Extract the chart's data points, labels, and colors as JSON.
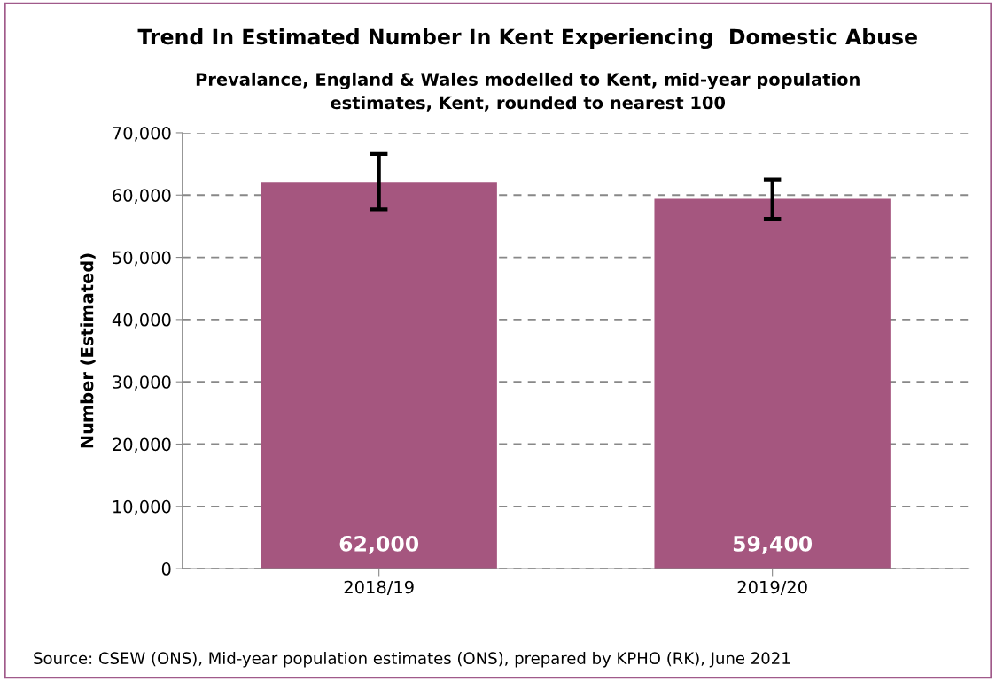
{
  "chart_data": {
    "type": "bar",
    "title": "Trend In Estimated Number In Kent Experiencing  Domestic Abuse",
    "subtitle": "Prevalance, England & Wales modelled to Kent, mid-year population\nestimates, Kent, rounded to nearest 100",
    "ylabel": "Number (Estimated)",
    "categories": [
      "2018/19",
      "2019/20"
    ],
    "values": [
      62000,
      59400
    ],
    "value_labels": [
      "62,000",
      "59,400"
    ],
    "errors": [
      [
        57700,
        66600
      ],
      [
        56200,
        62500
      ]
    ],
    "color": "#a5567f",
    "ylim": [
      0,
      70000
    ],
    "yticks": [
      {
        "value": 0,
        "label": "0"
      },
      {
        "value": 10000,
        "label": "10,000"
      },
      {
        "value": 20000,
        "label": "20,000"
      },
      {
        "value": 30000,
        "label": "30,000"
      },
      {
        "value": 40000,
        "label": "40,000"
      },
      {
        "value": 50000,
        "label": "50,000"
      },
      {
        "value": 60000,
        "label": "60,000"
      },
      {
        "value": 70000,
        "label": "70,000"
      }
    ],
    "grid": "y",
    "annotations": [
      "Source: CSEW (ONS), Mid-year population estimates (ONS), prepared by KPHO (RK), June 2021"
    ]
  }
}
